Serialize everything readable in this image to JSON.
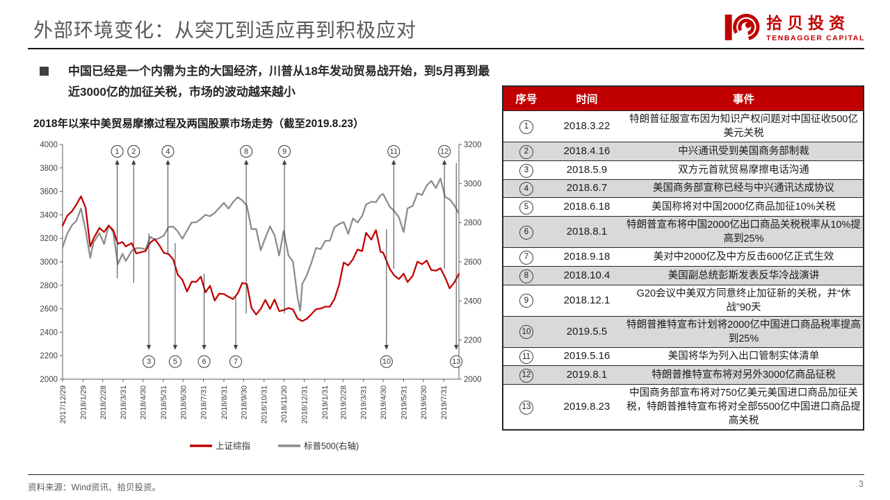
{
  "slide": {
    "title": "外部环境变化：从突兀到适应再到积极应对",
    "bullet": "中国已经是一个内需为主的大国经济，川普从18年发动贸易战开始，到5月再到最近3000亿的加征关税，市场的波动越来越小",
    "source_note": "资料来源：Wind资讯、拾贝投资。",
    "page_number": "3"
  },
  "logo": {
    "name_cn": "拾贝投资",
    "name_en": "TENBAGGER CAPITAL",
    "color": "#C00000"
  },
  "chart_data": {
    "type": "line",
    "title": "2018年以来中美贸易摩擦过程及两国股票市场走势（截至2019.8.23）",
    "legend_position": "bottom",
    "grid": false,
    "left_axis": {
      "min": 2000,
      "max": 4000,
      "step": 200
    },
    "right_axis": {
      "min": 2000,
      "max": 3200,
      "step": 200
    },
    "x_domain_days": [
      0,
      602
    ],
    "x_ticks": [
      {
        "label": "2017/12/29",
        "day": 0
      },
      {
        "label": "2018/1/29",
        "day": 31
      },
      {
        "label": "2018/2/28",
        "day": 61
      },
      {
        "label": "2018/3/31",
        "day": 92
      },
      {
        "label": "2018/4/30",
        "day": 122
      },
      {
        "label": "2018/5/31",
        "day": 153
      },
      {
        "label": "2018/6/30",
        "day": 183
      },
      {
        "label": "2018/7/31",
        "day": 214
      },
      {
        "label": "2018/8/31",
        "day": 245
      },
      {
        "label": "2018/9/30",
        "day": 275
      },
      {
        "label": "2018/10/31",
        "day": 306
      },
      {
        "label": "2018/11/30",
        "day": 336
      },
      {
        "label": "2018/12/31",
        "day": 367
      },
      {
        "label": "2019/1/31",
        "day": 398
      },
      {
        "label": "2019/2/28",
        "day": 426
      },
      {
        "label": "2019/3/31",
        "day": 457
      },
      {
        "label": "2019/4/30",
        "day": 487
      },
      {
        "label": "2019/5/31",
        "day": 518
      },
      {
        "label": "2019/6/30",
        "day": 548
      },
      {
        "label": "2019/7/31",
        "day": 579
      }
    ],
    "days": [
      0,
      7,
      14,
      21,
      28,
      35,
      42,
      47,
      56,
      63,
      70,
      77,
      84,
      91,
      96,
      105,
      112,
      119,
      126,
      133,
      140,
      147,
      154,
      161,
      168,
      175,
      182,
      189,
      196,
      203,
      210,
      217,
      224,
      231,
      238,
      245,
      252,
      259,
      266,
      273,
      280,
      287,
      294,
      301,
      308,
      315,
      322,
      329,
      336,
      343,
      350,
      357,
      361,
      364,
      371,
      378,
      385,
      392,
      399,
      406,
      413,
      420,
      427,
      434,
      441,
      448,
      455,
      461,
      469,
      476,
      483,
      487,
      497,
      504,
      511,
      518,
      524,
      532,
      539,
      546,
      553,
      560,
      567,
      574,
      581,
      588,
      595,
      602
    ],
    "series": [
      {
        "name": "上证综指",
        "axis": "left",
        "color": "#C00000",
        "values": [
          3307,
          3392,
          3429,
          3488,
          3558,
          3462,
          3130,
          3199,
          3289,
          3254,
          3307,
          3269,
          3153,
          3168,
          3131,
          3159,
          3071,
          3082,
          3091,
          3163,
          3193,
          3141,
          3075,
          3067,
          3021,
          2890,
          2847,
          2747,
          2831,
          2829,
          2873,
          2740,
          2795,
          2669,
          2729,
          2725,
          2702,
          2682,
          2730,
          2821,
          2810,
          2607,
          2551,
          2599,
          2676,
          2599,
          2679,
          2580,
          2588,
          2606,
          2594,
          2516,
          2504,
          2494,
          2515,
          2554,
          2596,
          2602,
          2618,
          2618,
          2682,
          2804,
          2994,
          2969,
          3022,
          3104,
          3091,
          3247,
          3189,
          3270,
          3086,
          3078,
          2939,
          2882,
          2853,
          2899,
          2827,
          2882,
          3001,
          2979,
          3011,
          2930,
          2924,
          2945,
          2868,
          2774,
          2824,
          2897
        ]
      },
      {
        "name": "标普500(右轴)",
        "axis": "right",
        "color": "#8C8C8C",
        "values": [
          2674,
          2743,
          2786,
          2810,
          2873,
          2762,
          2620,
          2699,
          2747,
          2691,
          2787,
          2752,
          2588,
          2641,
          2604,
          2656,
          2670,
          2670,
          2663,
          2728,
          2713,
          2721,
          2735,
          2779,
          2780,
          2755,
          2718,
          2760,
          2801,
          2802,
          2819,
          2840,
          2833,
          2850,
          2875,
          2901,
          2872,
          2905,
          2930,
          2914,
          2886,
          2767,
          2768,
          2659,
          2723,
          2781,
          2736,
          2632,
          2760,
          2633,
          2600,
          2417,
          2351,
          2486,
          2532,
          2596,
          2671,
          2665,
          2707,
          2708,
          2776,
          2793,
          2803,
          2743,
          2822,
          2801,
          2834,
          2893,
          2907,
          2905,
          2940,
          2946,
          2881,
          2860,
          2826,
          2752,
          2873,
          2887,
          2950,
          2942,
          2990,
          3014,
          2977,
          3026,
          2932,
          2919,
          2889,
          2847
        ]
      }
    ],
    "annotations": [
      {
        "n": "1",
        "date": "2018.3.22",
        "day": 83,
        "side": "top",
        "depth": 0.57
      },
      {
        "n": "2",
        "date": "2018.4.16",
        "day": 108,
        "side": "top",
        "depth": 0.59
      },
      {
        "n": "3",
        "date": "2018.5.9",
        "day": 131,
        "side": "bottom",
        "depth": 0.38
      },
      {
        "n": "4",
        "date": "2018.6.7",
        "day": 160,
        "side": "top",
        "depth": 0.47
      },
      {
        "n": "5",
        "date": "2018.6.18",
        "day": 171,
        "side": "bottom",
        "depth": 0.42
      },
      {
        "n": "6",
        "date": "2018.8.1",
        "day": 215,
        "side": "bottom",
        "depth": 0.55
      },
      {
        "n": "7",
        "date": "2018.9.18",
        "day": 263,
        "side": "bottom",
        "depth": 0.64
      },
      {
        "n": "8",
        "date": "2018.10.4",
        "day": 279,
        "side": "top",
        "depth": 0.72
      },
      {
        "n": "9",
        "date": "2018.12.1",
        "day": 337,
        "side": "top",
        "depth": 0.72
      },
      {
        "n": "10",
        "date": "2019.5.5",
        "day": 492,
        "side": "bottom",
        "depth": 0.36
      },
      {
        "n": "11",
        "date": "2019.5.16",
        "day": 503,
        "side": "top",
        "depth": 0.53
      },
      {
        "n": "12",
        "date": "2019.8.1",
        "day": 580,
        "side": "top",
        "depth": 0.53
      },
      {
        "n": "13",
        "date": "2019.8.23",
        "day": 598,
        "side": "bottom",
        "depth": 0.08
      }
    ]
  },
  "table": {
    "headers": [
      "序号",
      "时间",
      "事件"
    ],
    "header_bg": "#C00000",
    "stripe_color": "#D9D9D9",
    "rows": [
      {
        "no": "1",
        "date": "2018.3.22",
        "event": "特朗普征服宣布因为知识产权问题对中国征收500亿美元关税"
      },
      {
        "no": "2",
        "date": "2018.4.16",
        "event": "中兴通讯受到美国商务部制裁"
      },
      {
        "no": "3",
        "date": "2018.5.9",
        "event": "双方元首就贸易摩擦电话沟通"
      },
      {
        "no": "4",
        "date": "2018.6.7",
        "event": "美国商务部宣称已经与中兴通讯达成协议"
      },
      {
        "no": "5",
        "date": "2018.6.18",
        "event": "美国称将对中国2000亿商品加征10%关税"
      },
      {
        "no": "6",
        "date": "2018.8.1",
        "event": "特朗普宣布将中国2000亿出口商品关税税率从10%提高到25%"
      },
      {
        "no": "7",
        "date": "2018.9.18",
        "event": "美对中2000亿及中方反击600亿正式生效"
      },
      {
        "no": "8",
        "date": "2018.10.4",
        "event": "美国副总统彭斯发表反华冷战演讲"
      },
      {
        "no": "9",
        "date": "2018.12.1",
        "event": "G20会议中美双方同意终止加征新的关税，并“休战”90天"
      },
      {
        "no": "10",
        "date": "2019.5.5",
        "event": "特朗普推特宣布计划将2000亿中国进口商品税率提高到25%"
      },
      {
        "no": "11",
        "date": "2019.5.16",
        "event": "美国将华为列入出口管制实体清单"
      },
      {
        "no": "12",
        "date": "2019.8.1",
        "event": "特朗普推特宣布将对另外3000亿商品征税"
      },
      {
        "no": "13",
        "date": "2019.8.23",
        "event": "中国商务部宣布将对750亿美元美国进口商品加征关税，特朗普推特宣布将对全部5500亿中国进口商品提高关税"
      }
    ]
  }
}
